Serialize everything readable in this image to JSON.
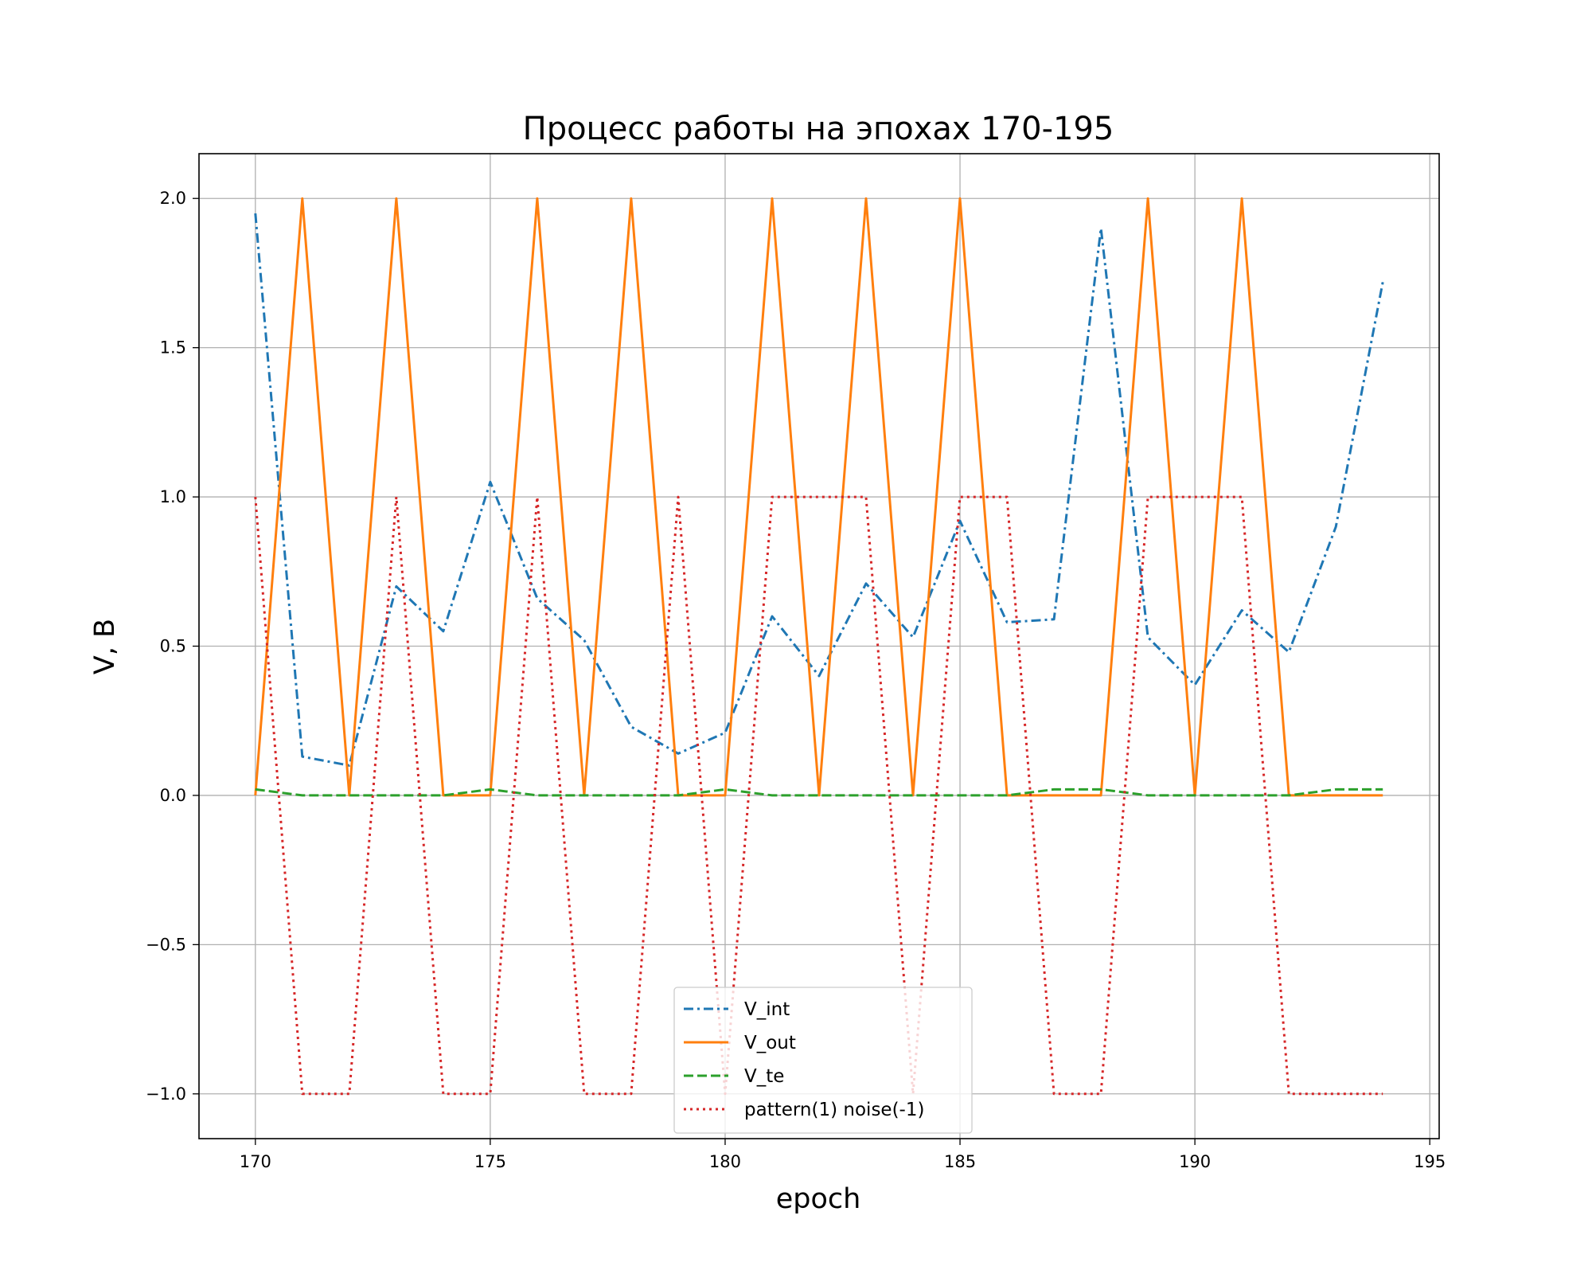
{
  "chart_data": {
    "type": "line",
    "title": "Процесс работы на эпохах 170-195",
    "xlabel": "epoch",
    "ylabel": "V, B",
    "xlim": [
      168.8,
      195.2
    ],
    "ylim": [
      -1.15,
      2.15
    ],
    "xticks": [
      170,
      175,
      180,
      185,
      190,
      195
    ],
    "yticks": [
      -1.0,
      -0.5,
      0.0,
      0.5,
      1.0,
      1.5,
      2.0
    ],
    "xtick_labels": [
      "170",
      "175",
      "180",
      "185",
      "190",
      "195"
    ],
    "ytick_labels": [
      "−1.0",
      "−0.5",
      "0.0",
      "0.5",
      "1.0",
      "1.5",
      "2.0"
    ],
    "grid": true,
    "legend_position": "lower center",
    "x": [
      170,
      171,
      172,
      173,
      174,
      175,
      176,
      177,
      178,
      179,
      180,
      181,
      182,
      183,
      184,
      185,
      186,
      187,
      188,
      189,
      190,
      191,
      192,
      193,
      194
    ],
    "series": [
      {
        "name": "V_int",
        "color": "#1f77b4",
        "dash": "dashdot",
        "values": [
          1.95,
          0.13,
          0.1,
          0.7,
          0.55,
          1.05,
          0.66,
          0.52,
          0.23,
          0.14,
          0.21,
          0.6,
          0.4,
          0.71,
          0.53,
          0.92,
          0.58,
          0.59,
          1.9,
          0.53,
          0.37,
          0.62,
          0.48,
          0.9,
          1.72
        ]
      },
      {
        "name": "V_out",
        "color": "#ff7f0e",
        "dash": "solid",
        "values": [
          0,
          2,
          0,
          2,
          0,
          0,
          2,
          0,
          2,
          0,
          0,
          2,
          0,
          2,
          0,
          2,
          0,
          0,
          0,
          2,
          0,
          2,
          0,
          0,
          0
        ]
      },
      {
        "name": "V_te",
        "color": "#2ca02c",
        "dash": "dashed",
        "values": [
          0.02,
          0,
          0,
          0,
          0,
          0.02,
          0,
          0,
          0,
          0,
          0.02,
          0,
          0,
          0,
          0,
          0,
          0,
          0.02,
          0.02,
          0,
          0,
          0,
          0,
          0.02,
          0.02
        ]
      },
      {
        "name": "pattern(1) noise(-1)",
        "color": "#d62728",
        "dash": "dotted",
        "values": [
          1,
          -1,
          -1,
          1,
          -1,
          -1,
          1,
          -1,
          -1,
          1,
          -1,
          1,
          1,
          1,
          -1,
          1,
          1,
          -1,
          -1,
          1,
          1,
          1,
          -1,
          -1,
          -1
        ]
      }
    ]
  }
}
